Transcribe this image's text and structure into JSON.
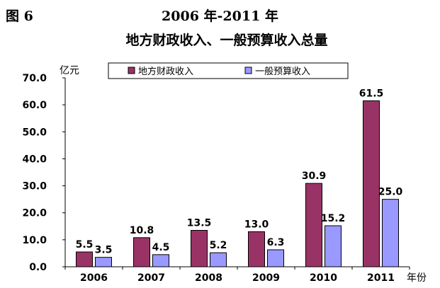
{
  "figure": {
    "label": "图 6",
    "title_line1": "2006 年-2011 年",
    "title_line2": "地方财政收入、一般预算收入总量"
  },
  "chart_data": {
    "type": "bar",
    "categories": [
      "2006",
      "2007",
      "2008",
      "2009",
      "2010",
      "2011"
    ],
    "series": [
      {
        "name": "地方财政收入",
        "values": [
          5.5,
          10.8,
          13.5,
          13.0,
          30.9,
          61.5
        ],
        "color": "#993366"
      },
      {
        "name": "一般预算收入",
        "values": [
          3.5,
          4.5,
          5.2,
          6.3,
          15.2,
          25.0
        ],
        "color": "#9999ff"
      }
    ],
    "value_labels": [
      [
        "5.5",
        "10.8",
        "13.5",
        "13.0",
        "30.9",
        "61.5"
      ],
      [
        "3.5",
        "4.5",
        "5.2",
        "6.3",
        "15.2",
        "25.0"
      ]
    ],
    "ylabel": "亿元",
    "xlabel": "年份",
    "ylim": [
      0,
      70
    ],
    "yticks": [
      0,
      10,
      20,
      30,
      40,
      50,
      60,
      70
    ],
    "ytick_labels": [
      "0.0",
      "10.0",
      "20.0",
      "30.0",
      "40.0",
      "50.0",
      "60.0",
      "70.0"
    ],
    "legend_position": "top",
    "grid": false
  }
}
